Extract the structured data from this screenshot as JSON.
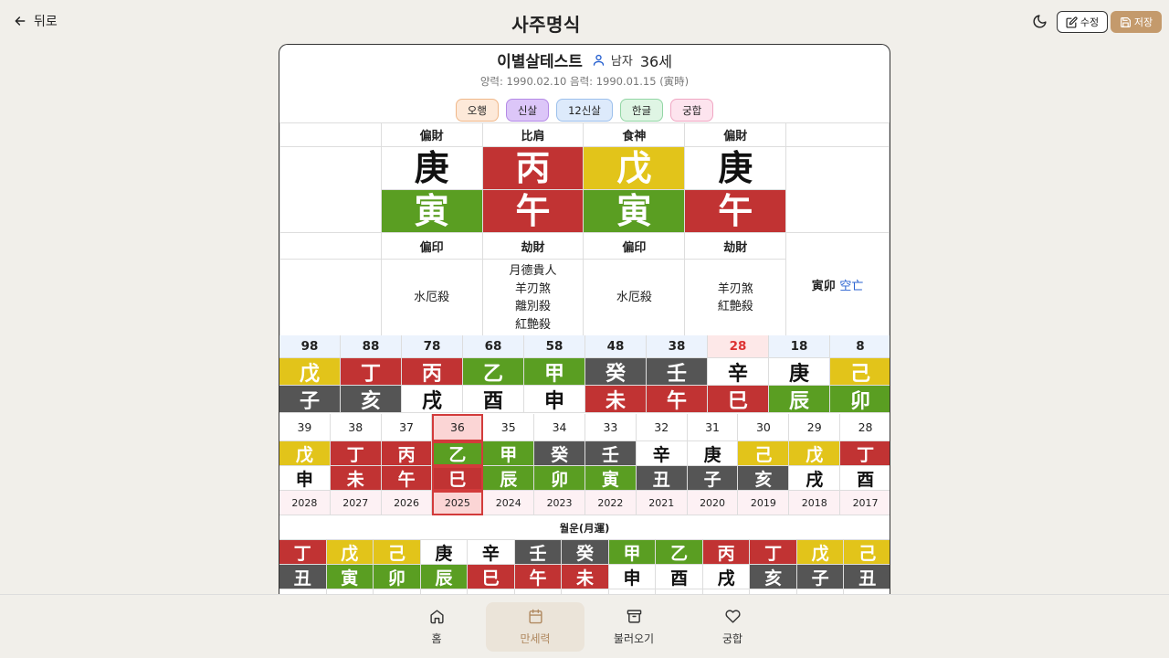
{
  "header": {
    "back_label": "뒤로",
    "title": "사주명식",
    "edit_label": "수정",
    "save_label": "저장"
  },
  "profile": {
    "name": "이별살테스트",
    "gender": "남자",
    "age": "36세",
    "dates": "양력: 1990.02.10 음력: 1990.01.15 (寅時)"
  },
  "tabs": [
    {
      "label": "오행",
      "bg": "#fde9d9",
      "border": "#f0b88a"
    },
    {
      "label": "신살",
      "bg": "#dcc6f8",
      "border": "#b58ae6"
    },
    {
      "label": "12신살",
      "bg": "#ddeafb",
      "border": "#9dc0ec"
    },
    {
      "label": "한글",
      "bg": "#dff5e4",
      "border": "#93d6a5"
    },
    {
      "label": "궁합",
      "bg": "#fde4ee",
      "border": "#f0a7c3"
    }
  ],
  "pillars": [
    {
      "stem_god": "偏財",
      "stem": "庚",
      "stem_bg": "#ffffff",
      "stem_fg": "#111111",
      "branch": "寅",
      "branch_bg": "#5a9e22",
      "branch_fg": "#ffffff",
      "branch_god": "偏印",
      "sals": [
        "水厄殺"
      ]
    },
    {
      "stem_god": "比肩",
      "stem": "丙",
      "stem_bg": "#c13333",
      "stem_fg": "#ffffff",
      "branch": "午",
      "branch_bg": "#c13333",
      "branch_fg": "#ffffff",
      "branch_god": "劫財",
      "sals": [
        "月德貴人",
        "羊刃煞",
        "離別殺",
        "紅艶殺"
      ]
    },
    {
      "stem_god": "食神",
      "stem": "戊",
      "stem_bg": "#e2c41a",
      "stem_fg": "#ffffff",
      "branch": "寅",
      "branch_bg": "#5a9e22",
      "branch_fg": "#ffffff",
      "branch_god": "偏印",
      "sals": [
        "水厄殺"
      ]
    },
    {
      "stem_god": "偏財",
      "stem": "庚",
      "stem_bg": "#ffffff",
      "stem_fg": "#111111",
      "branch": "午",
      "branch_bg": "#c13333",
      "branch_fg": "#ffffff",
      "branch_god": "劫財",
      "sals": [
        "羊刃煞",
        "紅艶殺"
      ]
    }
  ],
  "gongmang": {
    "branches": "寅卯",
    "label": "空亡"
  },
  "daeun": [
    {
      "age": "98",
      "stem": "戊",
      "stem_c": "#e2c41a",
      "branch": "子",
      "branch_c": "#555555"
    },
    {
      "age": "88",
      "stem": "丁",
      "stem_c": "#c13333",
      "branch": "亥",
      "branch_c": "#555555"
    },
    {
      "age": "78",
      "stem": "丙",
      "stem_c": "#c13333",
      "branch": "戌",
      "branch_c": "#ffffff"
    },
    {
      "age": "68",
      "stem": "乙",
      "stem_c": "#5a9e22",
      "branch": "酉",
      "branch_c": "#ffffff"
    },
    {
      "age": "58",
      "stem": "甲",
      "stem_c": "#5a9e22",
      "branch": "申",
      "branch_c": "#ffffff"
    },
    {
      "age": "48",
      "stem": "癸",
      "stem_c": "#555555",
      "branch": "未",
      "branch_c": "#c13333"
    },
    {
      "age": "38",
      "stem": "壬",
      "stem_c": "#555555",
      "branch": "午",
      "branch_c": "#c13333"
    },
    {
      "age": "28",
      "stem": "辛",
      "stem_c": "#ffffff",
      "branch": "巳",
      "branch_c": "#c13333",
      "current": true
    },
    {
      "age": "18",
      "stem": "庚",
      "stem_c": "#ffffff",
      "branch": "辰",
      "branch_c": "#5a9e22"
    },
    {
      "age": "8",
      "stem": "己",
      "stem_c": "#e2c41a",
      "branch": "卯",
      "branch_c": "#5a9e22"
    }
  ],
  "yeonun": [
    {
      "age": "39",
      "stem": "戊",
      "stem_c": "#e2c41a",
      "branch": "申",
      "branch_c": "#ffffff",
      "year": "2028"
    },
    {
      "age": "38",
      "stem": "丁",
      "stem_c": "#c13333",
      "branch": "未",
      "branch_c": "#c13333",
      "year": "2027"
    },
    {
      "age": "37",
      "stem": "丙",
      "stem_c": "#c13333",
      "branch": "午",
      "branch_c": "#c13333",
      "year": "2026"
    },
    {
      "age": "36",
      "stem": "乙",
      "stem_c": "#5a9e22",
      "branch": "巳",
      "branch_c": "#c13333",
      "year": "2025",
      "current": true
    },
    {
      "age": "35",
      "stem": "甲",
      "stem_c": "#5a9e22",
      "branch": "辰",
      "branch_c": "#5a9e22",
      "year": "2024"
    },
    {
      "age": "34",
      "stem": "癸",
      "stem_c": "#555555",
      "branch": "卯",
      "branch_c": "#5a9e22",
      "year": "2023"
    },
    {
      "age": "33",
      "stem": "壬",
      "stem_c": "#555555",
      "branch": "寅",
      "branch_c": "#5a9e22",
      "year": "2022"
    },
    {
      "age": "32",
      "stem": "辛",
      "stem_c": "#ffffff",
      "branch": "丑",
      "branch_c": "#555555",
      "year": "2021"
    },
    {
      "age": "31",
      "stem": "庚",
      "stem_c": "#ffffff",
      "branch": "子",
      "branch_c": "#555555",
      "year": "2020"
    },
    {
      "age": "30",
      "stem": "己",
      "stem_c": "#e2c41a",
      "branch": "亥",
      "branch_c": "#555555",
      "year": "2019"
    },
    {
      "age": "29",
      "stem": "戊",
      "stem_c": "#e2c41a",
      "branch": "戌",
      "branch_c": "#ffffff",
      "year": "2018"
    },
    {
      "age": "28",
      "stem": "丁",
      "stem_c": "#c13333",
      "branch": "酉",
      "branch_c": "#ffffff",
      "year": "2017"
    }
  ],
  "wolun": {
    "title": "월운(月運)",
    "items": [
      {
        "stem": "丁",
        "stem_c": "#c13333",
        "branch": "丑",
        "branch_c": "#555555"
      },
      {
        "stem": "戊",
        "stem_c": "#e2c41a",
        "branch": "寅",
        "branch_c": "#5a9e22"
      },
      {
        "stem": "己",
        "stem_c": "#e2c41a",
        "branch": "卯",
        "branch_c": "#5a9e22"
      },
      {
        "stem": "庚",
        "stem_c": "#ffffff",
        "branch": "辰",
        "branch_c": "#5a9e22"
      },
      {
        "stem": "辛",
        "stem_c": "#ffffff",
        "branch": "巳",
        "branch_c": "#c13333"
      },
      {
        "stem": "壬",
        "stem_c": "#555555",
        "branch": "午",
        "branch_c": "#c13333"
      },
      {
        "stem": "癸",
        "stem_c": "#555555",
        "branch": "未",
        "branch_c": "#c13333"
      },
      {
        "stem": "甲",
        "stem_c": "#5a9e22",
        "branch": "申",
        "branch_c": "#ffffff"
      },
      {
        "stem": "乙",
        "stem_c": "#5a9e22",
        "branch": "酉",
        "branch_c": "#ffffff"
      },
      {
        "stem": "丙",
        "stem_c": "#c13333",
        "branch": "戌",
        "branch_c": "#ffffff"
      },
      {
        "stem": "丁",
        "stem_c": "#c13333",
        "branch": "亥",
        "branch_c": "#555555"
      },
      {
        "stem": "戊",
        "stem_c": "#e2c41a",
        "branch": "子",
        "branch_c": "#555555"
      },
      {
        "stem": "己",
        "stem_c": "#e2c41a",
        "branch": "丑",
        "branch_c": "#555555"
      }
    ]
  },
  "nav": [
    {
      "label": "홈",
      "icon": "home-icon"
    },
    {
      "label": "만세력",
      "icon": "calendar-icon",
      "active": true
    },
    {
      "label": "불러오기",
      "icon": "archive-icon"
    },
    {
      "label": "궁합",
      "icon": "heart-icon"
    }
  ]
}
